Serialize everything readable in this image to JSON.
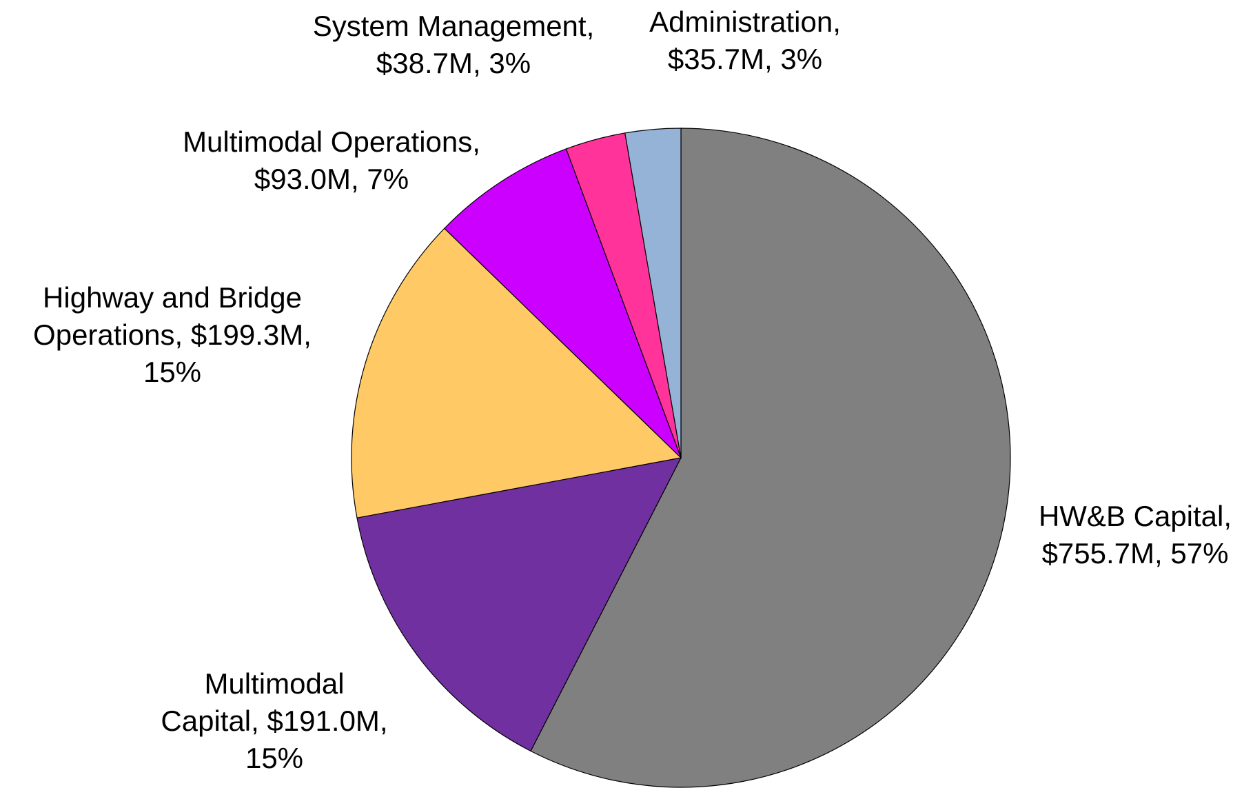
{
  "chart_data": {
    "type": "pie",
    "labels": [
      [
        "HW&B Capital,",
        "$755.7M, 57%"
      ],
      [
        "Multimodal",
        "Capital, $191.0M,",
        "15%"
      ],
      [
        "Highway and Bridge",
        "Operations, $199.3M,",
        "15%"
      ],
      [
        "Multimodal Operations,",
        "$93.0M, 7%"
      ],
      [
        "System Management,",
        "$38.7M, 3%"
      ],
      [
        "Administration,",
        "$35.7M, 3%"
      ]
    ],
    "values": [
      755.7,
      191.0,
      199.3,
      93.0,
      38.7,
      35.7
    ],
    "value_labels": [
      "$755.7M",
      "$191.0M",
      "$199.3M",
      "$93.0M",
      "$38.7M",
      "$35.7M"
    ],
    "colors": [
      "#808080",
      "#7030a0",
      "#ffc966",
      "#cc00ff",
      "#ff3399",
      "#95b3d7"
    ],
    "start_angle": 0,
    "direction": "clockwise"
  }
}
